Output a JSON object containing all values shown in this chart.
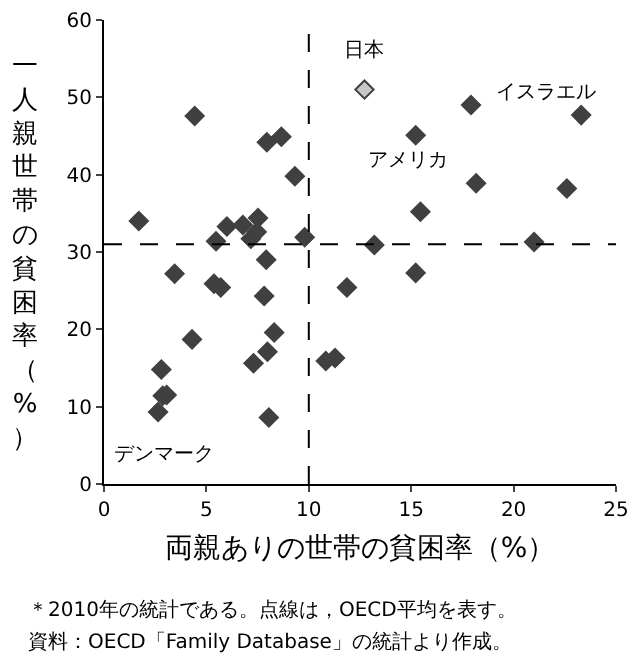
{
  "chart_data": {
    "type": "scatter",
    "xlabel": "両親ありの世帯の貧困率（%）",
    "ylabel": "一人親世帯の貧困率（%）",
    "x": [
      4.43,
      7.95,
      8.66,
      9.32,
      1.7,
      6.0,
      6.78,
      7.52,
      7.46,
      7.17,
      5.47,
      9.8,
      3.45,
      5.37,
      5.7,
      7.92,
      7.82,
      8.31,
      4.3,
      7.98,
      7.3,
      2.8,
      2.87,
      3.06,
      2.64,
      8.05,
      12.72,
      17.92,
      23.3,
      15.22,
      18.17,
      22.6,
      15.45,
      13.2,
      21.0,
      15.22,
      11.86,
      10.83,
      11.28
    ],
    "values": [
      47.6,
      44.2,
      44.9,
      39.8,
      34.0,
      33.3,
      33.5,
      34.4,
      32.6,
      31.7,
      31.4,
      31.9,
      27.2,
      25.9,
      25.4,
      29.0,
      24.3,
      19.6,
      18.7,
      17.1,
      15.6,
      14.8,
      11.4,
      11.5,
      9.3,
      8.6,
      51.0,
      49.0,
      47.7,
      45.1,
      38.9,
      38.2,
      35.2,
      30.9,
      31.3,
      27.3,
      25.4,
      15.9,
      16.3
    ],
    "colors": [
      "#404040",
      "#404040",
      "#404040",
      "#404040",
      "#404040",
      "#404040",
      "#404040",
      "#404040",
      "#404040",
      "#404040",
      "#404040",
      "#404040",
      "#404040",
      "#404040",
      "#404040",
      "#404040",
      "#404040",
      "#404040",
      "#404040",
      "#404040",
      "#404040",
      "#404040",
      "#404040",
      "#404040",
      "#404040",
      "#404040",
      "#c8c8c8",
      "#404040",
      "#404040",
      "#404040",
      "#404040",
      "#404040",
      "#404040",
      "#404040",
      "#404040",
      "#404040",
      "#404040",
      "#404040",
      "#404040"
    ],
    "marker": "diamond",
    "xlim": [
      0,
      25
    ],
    "xticks": [
      0,
      5,
      10,
      15,
      20,
      25
    ],
    "ylim": [
      0,
      60
    ],
    "yticks": [
      0,
      10,
      20,
      30,
      40,
      50,
      60
    ],
    "grid": false,
    "ref_lines": [
      {
        "axis": "x",
        "value": 10,
        "line_style": "dashed",
        "color": "#000000"
      },
      {
        "axis": "y",
        "value": 31.0,
        "line_style": "dashed",
        "color": "#000000"
      }
    ],
    "annotations": [
      {
        "text": "日本",
        "x": 12.72,
        "y": 51.0
      },
      {
        "text": "イスラエル",
        "x": 23.3,
        "y": 47.7
      },
      {
        "text": "アメリカ",
        "x": 15.22,
        "y": 45.1
      },
      {
        "text": "デンマーク",
        "x": 2.64,
        "y": 9.3
      },
      "＊2010年の統計である。点線は，OECD平均を表す。",
      "資料：OECD「Family Database」の統計より作成。"
    ]
  }
}
